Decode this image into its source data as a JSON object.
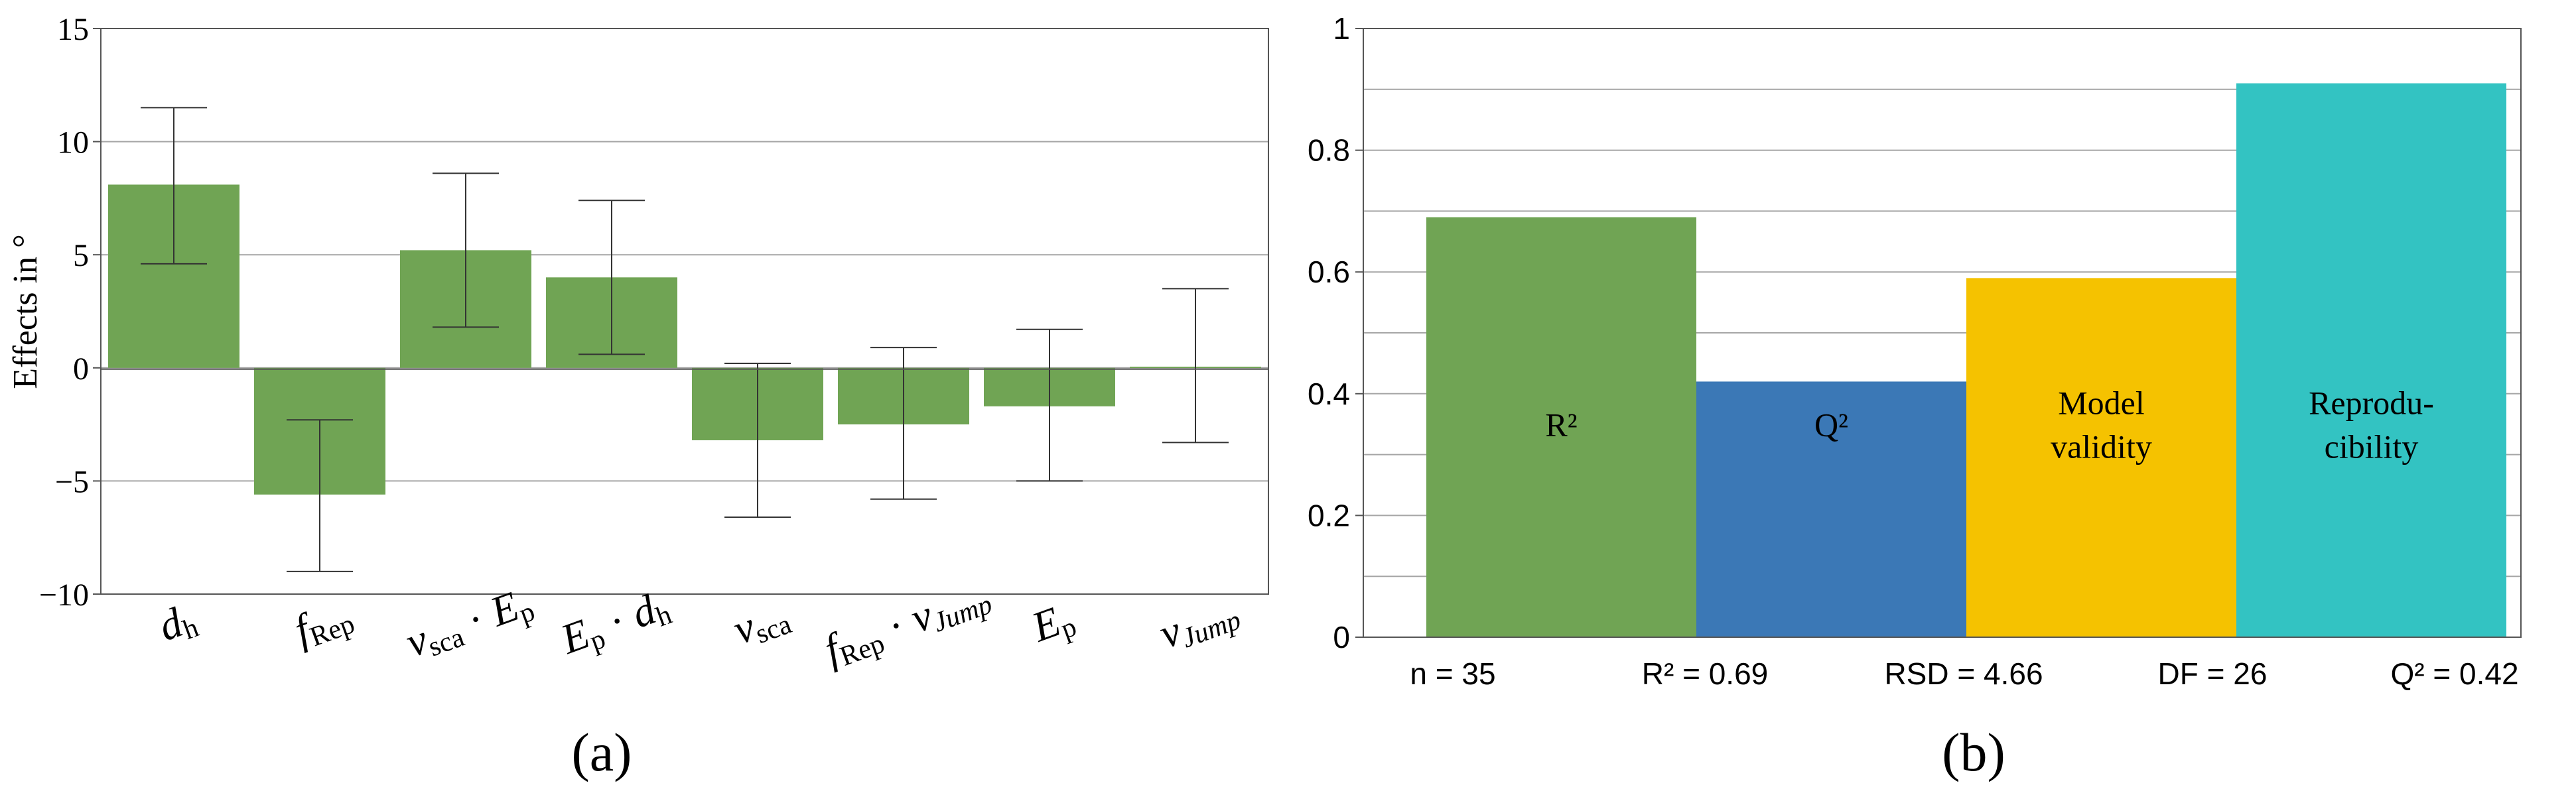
{
  "panel_a": {
    "caption": "(a)",
    "chart_data": {
      "type": "bar",
      "ylabel": "Effects in °",
      "ylim": [
        -10,
        15
      ],
      "yticks": [
        15,
        10,
        5,
        0,
        -5,
        -10
      ],
      "ytick_labels": [
        "15",
        "10",
        "5",
        "0",
        "−5",
        "−10"
      ],
      "grid": true,
      "color": "#70a454",
      "categories": [
        [
          {
            "t": "d",
            "i": true
          },
          {
            "t": "h",
            "sub": true
          }
        ],
        [
          {
            "t": "f",
            "i": true
          },
          {
            "t": "Rep",
            "sub": true
          }
        ],
        [
          {
            "t": "ν",
            "i": true
          },
          {
            "t": "sca",
            "sub": true
          },
          {
            "t": " · "
          },
          {
            "t": "E",
            "i": true
          },
          {
            "t": "p",
            "sub": true
          }
        ],
        [
          {
            "t": "E",
            "i": true
          },
          {
            "t": "p",
            "sub": true
          },
          {
            "t": " · "
          },
          {
            "t": "d",
            "i": true
          },
          {
            "t": "h",
            "sub": true
          }
        ],
        [
          {
            "t": "ν",
            "i": true
          },
          {
            "t": "sca",
            "sub": true
          }
        ],
        [
          {
            "t": "f",
            "i": true
          },
          {
            "t": "Rep",
            "sub": true
          },
          {
            "t": " · "
          },
          {
            "t": "ν",
            "i": true
          },
          {
            "t": "Jump",
            "sub": true,
            "i": true
          }
        ],
        [
          {
            "t": "E",
            "i": true
          },
          {
            "t": "p",
            "sub": true
          }
        ],
        [
          {
            "t": "ν",
            "i": true
          },
          {
            "t": "Jump",
            "sub": true,
            "i": true
          }
        ]
      ],
      "values": [
        8.1,
        -5.6,
        5.2,
        4.0,
        -3.2,
        -2.5,
        -1.7,
        0.05
      ],
      "err_low": [
        4.6,
        -9.0,
        1.8,
        0.6,
        -6.6,
        -5.8,
        -5.0,
        -3.3
      ],
      "err_high": [
        11.5,
        -2.3,
        8.6,
        7.4,
        0.2,
        0.9,
        1.7,
        3.5
      ]
    }
  },
  "panel_b": {
    "caption": "(b)",
    "chart_data": {
      "type": "bar",
      "ylim": [
        0,
        1
      ],
      "yticks": [
        0,
        0.2,
        0.4,
        0.6,
        0.8,
        1
      ],
      "ytick_labels": [
        "0",
        "0.2",
        "0.4",
        "0.6",
        "0.8",
        "1"
      ],
      "minor_grid_step": 0.1,
      "bars": [
        {
          "label": [
            "R²"
          ],
          "value": 0.69,
          "color": "#70a454"
        },
        {
          "label": [
            "Q²"
          ],
          "value": 0.42,
          "color": "#3b78b6"
        },
        {
          "label": [
            "Model",
            "validity"
          ],
          "value": 0.59,
          "color": "#f5c200"
        },
        {
          "label": [
            "Reprodu-",
            "cibility"
          ],
          "value": 0.91,
          "color": "#33c3c2"
        }
      ],
      "stats": [
        "n = 35",
        "R² = 0.69",
        "RSD = 4.66",
        "DF = 26",
        "Q² = 0.42"
      ]
    }
  }
}
